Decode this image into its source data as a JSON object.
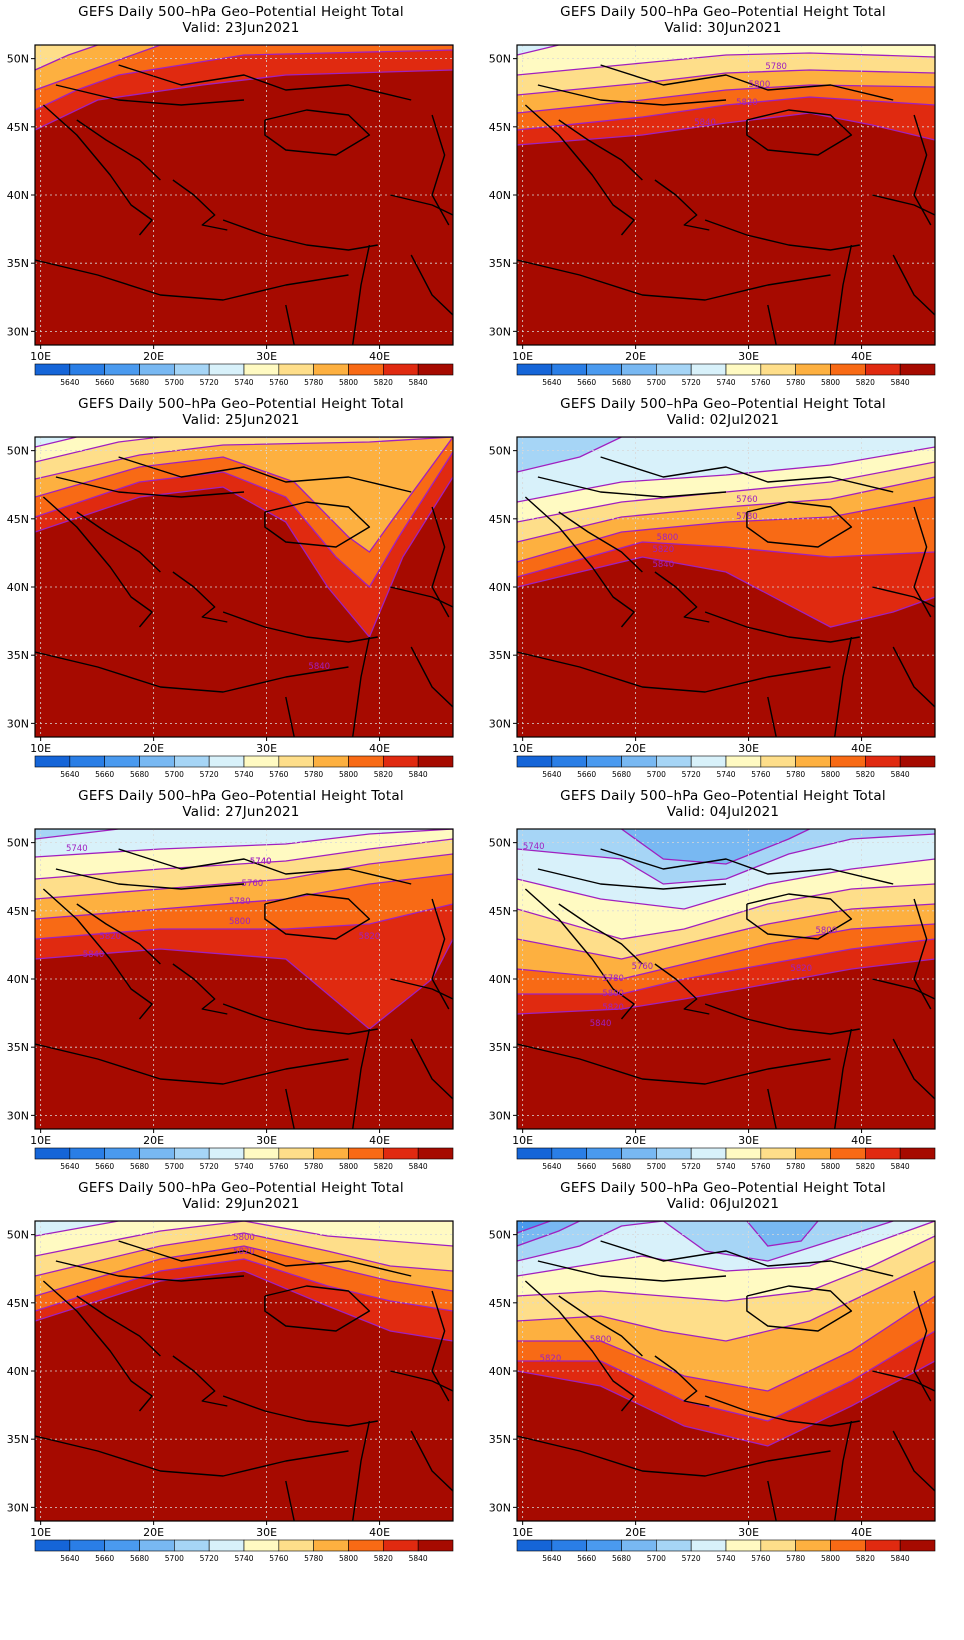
{
  "panels": [
    {
      "title": "GEFS Daily 500–hPa Geo–Potential Height Total",
      "valid": "Valid: 23Jun2021",
      "contour_labels": []
    },
    {
      "title": "GEFS Daily 500–hPa Geo–Potential Height Total",
      "valid": "Valid: 30Jun2021",
      "contour_labels": [
        "5780",
        "5800",
        "5820",
        "5840"
      ]
    },
    {
      "title": "GEFS Daily 500–hPa Geo–Potential Height Total",
      "valid": "Valid: 25Jun2021",
      "contour_labels": [
        "5840"
      ]
    },
    {
      "title": "GEFS Daily 500–hPa Geo–Potential Height Total",
      "valid": "Valid: 02Jul2021",
      "contour_labels": [
        "5760",
        "5780",
        "5800",
        "5820",
        "5840"
      ]
    },
    {
      "title": "GEFS Daily 500–hPa Geo–Potential Height Total",
      "valid": "Valid: 27Jun2021",
      "contour_labels": [
        "5740",
        "5740",
        "5740",
        "5760",
        "5780",
        "5800",
        "5820",
        "5820",
        "5840"
      ]
    },
    {
      "title": "GEFS Daily 500–hPa Geo–Potential Height Total",
      "valid": "Valid: 04Jul2021",
      "contour_labels": [
        "5740",
        "5760",
        "5780",
        "5800",
        "5800",
        "5820",
        "5820",
        "5840"
      ]
    },
    {
      "title": "GEFS Daily 500–hPa Geo–Potential Height Total",
      "valid": "Valid: 29Jun2021",
      "contour_labels": [
        "5800",
        "5820"
      ]
    },
    {
      "title": "GEFS Daily 500–hPa Geo–Potential Height Total",
      "valid": "Valid: 06Jul2021",
      "contour_labels": [
        "5800",
        "5820"
      ]
    }
  ],
  "axes": {
    "lon_ticks": [
      "10E",
      "20E",
      "30E",
      "40E"
    ],
    "lon_values": [
      10,
      20,
      30,
      40
    ],
    "lon_range": [
      9.5,
      46.5
    ],
    "lat_ticks": [
      "30N",
      "35N",
      "40N",
      "45N",
      "50N"
    ],
    "lat_values": [
      30,
      35,
      40,
      45,
      50
    ],
    "lat_range": [
      29,
      51
    ]
  },
  "colorbar": {
    "labels": [
      "5640",
      "5660",
      "5680",
      "5700",
      "5720",
      "5740",
      "5760",
      "5780",
      "5800",
      "5820",
      "5840"
    ],
    "colors": [
      "#1565d8",
      "#2a7ee6",
      "#4a9aef",
      "#78b8f2",
      "#a6d5f6",
      "#d8f1fa",
      "#fffac2",
      "#fede8a",
      "#fdb040",
      "#f86a15",
      "#e02a10",
      "#a60a00"
    ]
  }
}
